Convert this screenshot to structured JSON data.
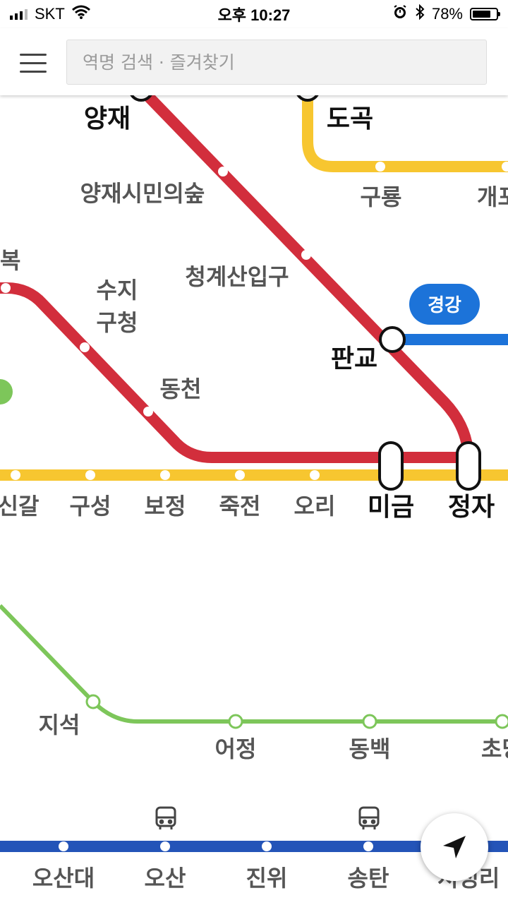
{
  "status_bar": {
    "carrier": "SKT",
    "time": "오후 10:27",
    "battery_level": "78%",
    "battery_fraction": 0.78
  },
  "search": {
    "placeholder": "역명 검색 · 즐겨찾기"
  },
  "map": {
    "line_colors": {
      "shinbundang": "#D22E3C",
      "suin_bundang": "#F7C630",
      "gyeonggang": "#1C73D9",
      "everline": "#7DC65A",
      "line1": "#2454B8"
    },
    "stations": {
      "yangjae": "양재",
      "dogok": "도곡",
      "yangjae_citizens_forest": "양재시민의숲",
      "guryong": "구룡",
      "gaepo_partial": "개포",
      "bok_partial": "복",
      "suji_line1": "수지",
      "suji_line2": "구청",
      "cheonggyesan": "청계산입구",
      "pangyo": "판교",
      "dongcheon": "동천",
      "singal_partial": "신갈",
      "guseong": "구성",
      "bojeong": "보정",
      "jukjeon": "죽전",
      "ori": "오리",
      "migeum": "미금",
      "jeongja": "정자",
      "jiseok": "지석",
      "eojeong": "어정",
      "dongbaek": "동백",
      "chodang_partial": "초당",
      "osan_univ": "오산대",
      "osan": "오산",
      "jinwi": "진위",
      "songtan": "송탄",
      "seojeongri_partial": "서정리"
    },
    "line_badge": "경강",
    "icons": {
      "menu": "menu-icon",
      "wifi": "wifi-icon",
      "alarm": "alarm-icon",
      "bluetooth": "bluetooth-icon",
      "bus": "bus-icon",
      "locate": "location-arrow-icon"
    }
  }
}
